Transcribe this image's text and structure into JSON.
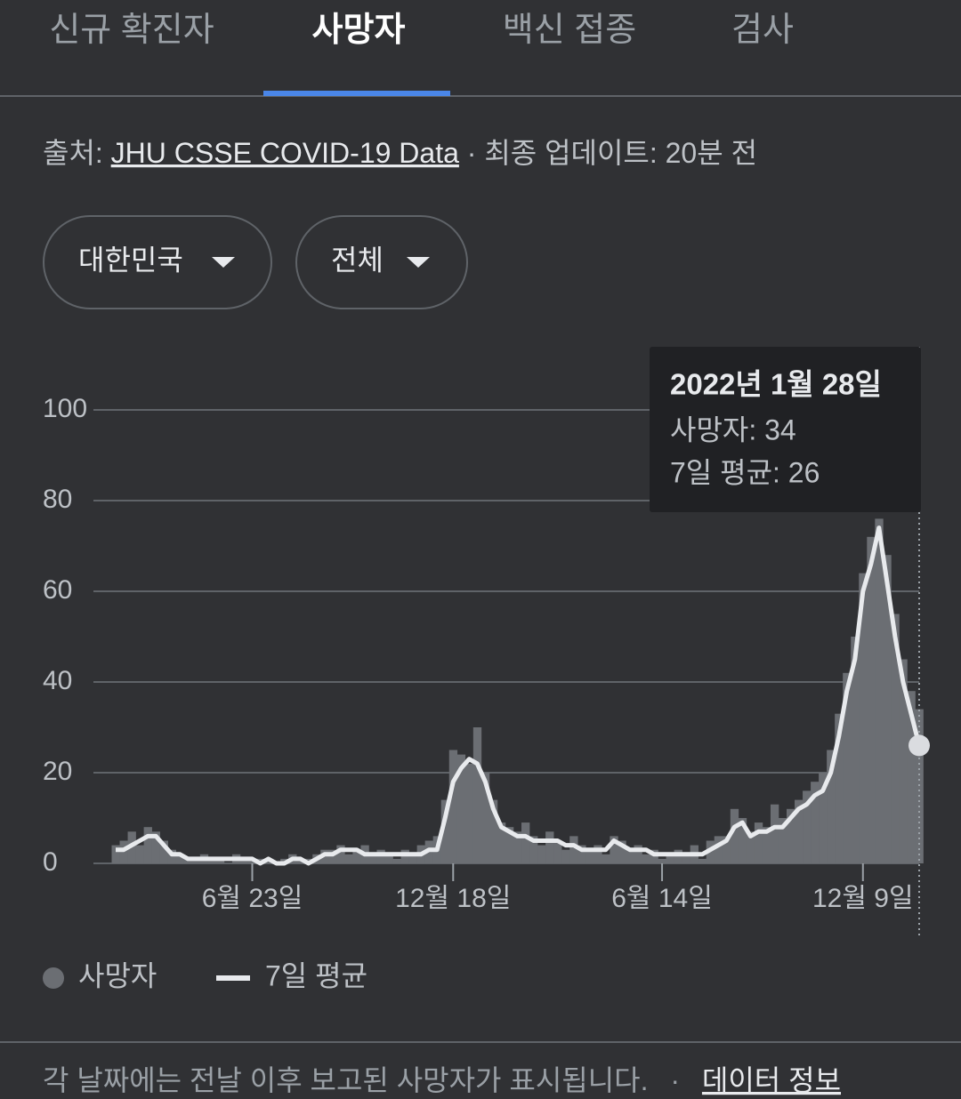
{
  "tabs": [
    "신규 확진자",
    "사망자",
    "백신 접종",
    "검사"
  ],
  "source": {
    "prefix": "출처:",
    "link": "JHU CSSE COVID-19 Data",
    "updated": "· 최종 업데이트: 20분 전"
  },
  "filters": [
    "대한민국",
    "전체"
  ],
  "footer": {
    "note": "각 날짜에는 전날 이후 보고된 사망자가 표시됩니다.",
    "separator": "·",
    "link": "데이터 정보"
  },
  "chart_data": {
    "type": "bar",
    "categories": [
      null,
      null,
      null,
      null,
      null,
      null,
      null,
      null,
      null,
      null,
      null,
      null,
      null,
      null,
      null,
      null,
      null,
      "6월 23일",
      null,
      null,
      null,
      null,
      null,
      null,
      null,
      null,
      null,
      null,
      null,
      null,
      null,
      null,
      null,
      null,
      null,
      null,
      null,
      null,
      null,
      null,
      null,
      null,
      "12월 18일",
      null,
      null,
      null,
      null,
      null,
      null,
      null,
      null,
      null,
      null,
      null,
      null,
      null,
      null,
      null,
      null,
      null,
      null,
      null,
      null,
      null,
      null,
      null,
      null,
      null,
      "6월 14일",
      null,
      null,
      null,
      null,
      null,
      null,
      null,
      null,
      null,
      null,
      null,
      null,
      null,
      null,
      null,
      null,
      null,
      null,
      null,
      null,
      null,
      null,
      null,
      null,
      "12월 9일",
      null,
      null,
      null,
      null,
      null,
      null,
      null
    ],
    "series": [
      {
        "name": "사망자",
        "color": "#6b6e73",
        "values": [
          4,
          5,
          7,
          4,
          8,
          7,
          5,
          3,
          2,
          1,
          1,
          2,
          1,
          1,
          0,
          2,
          1,
          1,
          1,
          1,
          0,
          1,
          2,
          1,
          1,
          2,
          3,
          3,
          4,
          2,
          3,
          4,
          2,
          3,
          2,
          1,
          3,
          2,
          4,
          5,
          6,
          14,
          25,
          24,
          22,
          30,
          20,
          14,
          9,
          8,
          7,
          9,
          6,
          4,
          7,
          5,
          3,
          6,
          4,
          3,
          4,
          2,
          6,
          5,
          3,
          4,
          2,
          3,
          1,
          2,
          3,
          2,
          4,
          1,
          5,
          6,
          6,
          12,
          10,
          7,
          9,
          8,
          13,
          10,
          12,
          14,
          16,
          18,
          20,
          25,
          33,
          42,
          50,
          64,
          72,
          76,
          68,
          55,
          45,
          38,
          34
        ]
      },
      {
        "name": "7일 평균",
        "color": "#e8eaed",
        "values": [
          3,
          3,
          4,
          5,
          6,
          6,
          4,
          2,
          2,
          1,
          1,
          1,
          1,
          1,
          1,
          1,
          1,
          1,
          0,
          1,
          0,
          0,
          1,
          1,
          0,
          1,
          2,
          2,
          3,
          3,
          3,
          2,
          2,
          2,
          2,
          2,
          2,
          2,
          2,
          3,
          3,
          10,
          18,
          21,
          23,
          22,
          18,
          12,
          8,
          7,
          6,
          6,
          5,
          5,
          5,
          5,
          4,
          4,
          3,
          3,
          3,
          3,
          5,
          4,
          3,
          3,
          3,
          2,
          2,
          2,
          2,
          2,
          2,
          2,
          3,
          4,
          5,
          8,
          9,
          6,
          7,
          7,
          8,
          8,
          10,
          12,
          13,
          15,
          16,
          20,
          28,
          38,
          45,
          60,
          66,
          74,
          62,
          50,
          40,
          33,
          26
        ]
      }
    ],
    "ylim": [
      0,
      100
    ],
    "yticks": [
      0,
      20,
      40,
      60,
      80,
      100
    ],
    "grid": true,
    "tooltip": {
      "title": "2022년 1월 28일",
      "lines": [
        "사망자: 34",
        "7일 평균: 26"
      ]
    }
  }
}
